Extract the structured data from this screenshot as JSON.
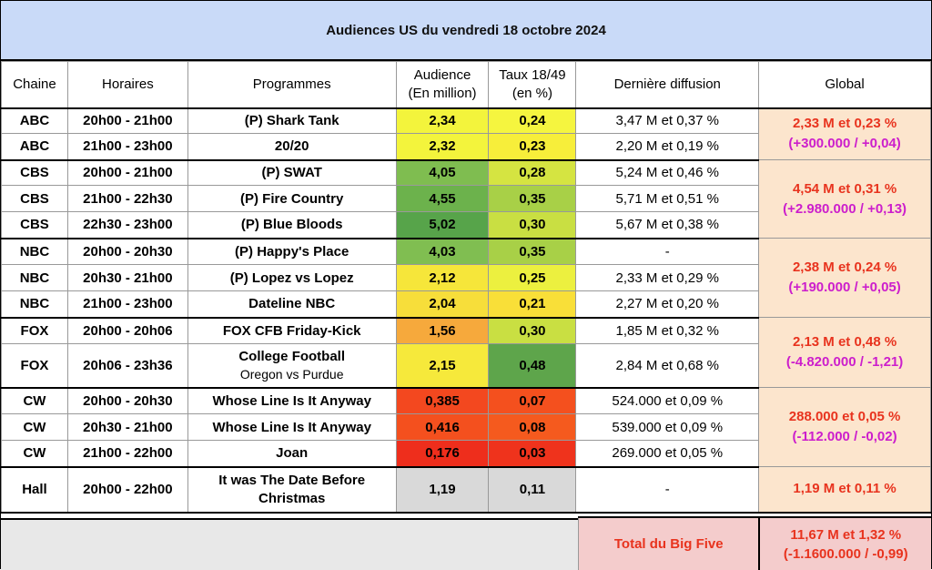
{
  "title": "Audiences US du vendredi 18 octobre 2024",
  "headers": {
    "chaine": "Chaine",
    "horaires": "Horaires",
    "programmes": "Programmes",
    "audience_l1": "Audience",
    "audience_l2": "(En million)",
    "taux_l1": "Taux 18/49",
    "taux_l2": "(en %)",
    "derniere": "Dernière diffusion",
    "global": "Global"
  },
  "rows": [
    {
      "chaine": "ABC",
      "horaires": "20h00 - 21h00",
      "programme": "(P) Shark Tank",
      "audience": "2,34",
      "taux": "0,24",
      "derniere": "3,47 M et 0,37 %",
      "aud_color": "#f3f43c",
      "taux_color": "#f5f53f"
    },
    {
      "chaine": "ABC",
      "horaires": "21h00 - 23h00",
      "programme": "20/20",
      "audience": "2,32",
      "taux": "0,23",
      "derniere": "2,20 M et 0,19 %",
      "aud_color": "#f3f43c",
      "taux_color": "#f7ee3a"
    },
    {
      "chaine": "CBS",
      "horaires": "20h00 - 21h00",
      "programme": "(P) SWAT",
      "audience": "4,05",
      "taux": "0,28",
      "derniere": "5,24 M et 0,46 %",
      "aud_color": "#7fbd50",
      "taux_color": "#d5e441"
    },
    {
      "chaine": "CBS",
      "horaires": "21h00 - 22h30",
      "programme": "(P) Fire Country",
      "audience": "4,55",
      "taux": "0,35",
      "derniere": "5,71 M et 0,51 %",
      "aud_color": "#6cb24c",
      "taux_color": "#a8d047"
    },
    {
      "chaine": "CBS",
      "horaires": "22h30 - 23h00",
      "programme": "(P) Blue Bloods",
      "audience": "5,02",
      "taux": "0,30",
      "derniere": "5,67 M et 0,38 %",
      "aud_color": "#57a44a",
      "taux_color": "#c9df42"
    },
    {
      "chaine": "NBC",
      "horaires": "20h00 - 20h30",
      "programme": "(P) Happy's Place",
      "audience": "4,03",
      "taux": "0,35",
      "derniere": "-",
      "aud_color": "#80be51",
      "taux_color": "#a8d047"
    },
    {
      "chaine": "NBC",
      "horaires": "20h30 - 21h00",
      "programme": "(P) Lopez vs Lopez",
      "audience": "2,12",
      "taux": "0,25",
      "derniere": "2,33 M et 0,29 %",
      "aud_color": "#f6e63a",
      "taux_color": "#ecf03f"
    },
    {
      "chaine": "NBC",
      "horaires": "21h00 - 23h00",
      "programme": "Dateline NBC",
      "audience": "2,04",
      "taux": "0,21",
      "derniere": "2,27 M et 0,20 %",
      "aud_color": "#f7de3a",
      "taux_color": "#f9df38"
    },
    {
      "chaine": "FOX",
      "horaires": "20h00 - 20h06",
      "programme": "FOX CFB Friday-Kick",
      "audience": "1,56",
      "taux": "0,30",
      "derniere": "1,85 M et 0,32 %",
      "aud_color": "#f6a93c",
      "taux_color": "#c9df42"
    },
    {
      "chaine": "FOX",
      "horaires": "20h06 - 23h36",
      "programme": "College Football",
      "programme_sub": "Oregon vs Purdue",
      "audience": "2,15",
      "taux": "0,48",
      "derniere": "2,84 M et 0,68 %",
      "aud_color": "#f6e93b",
      "taux_color": "#5ea54b"
    },
    {
      "chaine": "CW",
      "horaires": "20h00 - 20h30",
      "programme": "Whose Line Is It Anyway",
      "audience": "0,385",
      "taux": "0,07",
      "derniere": "524.000 et 0,09 %",
      "aud_color": "#f3481f",
      "taux_color": "#f4501e"
    },
    {
      "chaine": "CW",
      "horaires": "20h30 - 21h00",
      "programme": "Whose Line Is It Anyway",
      "audience": "0,416",
      "taux": "0,08",
      "derniere": "539.000 et 0,09 %",
      "aud_color": "#f4501e",
      "taux_color": "#f55a1e"
    },
    {
      "chaine": "CW",
      "horaires": "21h00 - 22h00",
      "programme": "Joan",
      "audience": "0,176",
      "taux": "0,03",
      "derniere": "269.000 et 0,05 %",
      "aud_color": "#ee2e1c",
      "taux_color": "#ef331c"
    },
    {
      "chaine": "Hall",
      "horaires": "20h00 - 22h00",
      "programme": "It was The Date Before",
      "programme_sub": "Christmas",
      "audience": "1,19",
      "taux": "0,11",
      "derniere": "-",
      "aud_color": "#d9d9d9",
      "taux_color": "#d9d9d9"
    }
  ],
  "globals": [
    {
      "line1": "2,33 M et 0,23 %",
      "line2": "(+300.000 / +0,04)"
    },
    {
      "line1": "4,54 M et 0,31 %",
      "line2": "(+2.980.000 / +0,13)"
    },
    {
      "line1": "2,38 M et 0,24 %",
      "line2": "(+190.000 / +0,05)"
    },
    {
      "line1": "2,13 M et 0,48 %",
      "line2": "(-4.820.000 / -1,21)"
    },
    {
      "line1": "288.000 et 0,05 %",
      "line2": "(-112.000 / -0,02)"
    },
    {
      "line1": "1,19 M et 0,11 %"
    }
  ],
  "footer": {
    "label": "Total du Big Five",
    "total_line1": "11,67 M et 1,32 %",
    "total_line2": "(-1.1600.000 / -0,99)"
  }
}
